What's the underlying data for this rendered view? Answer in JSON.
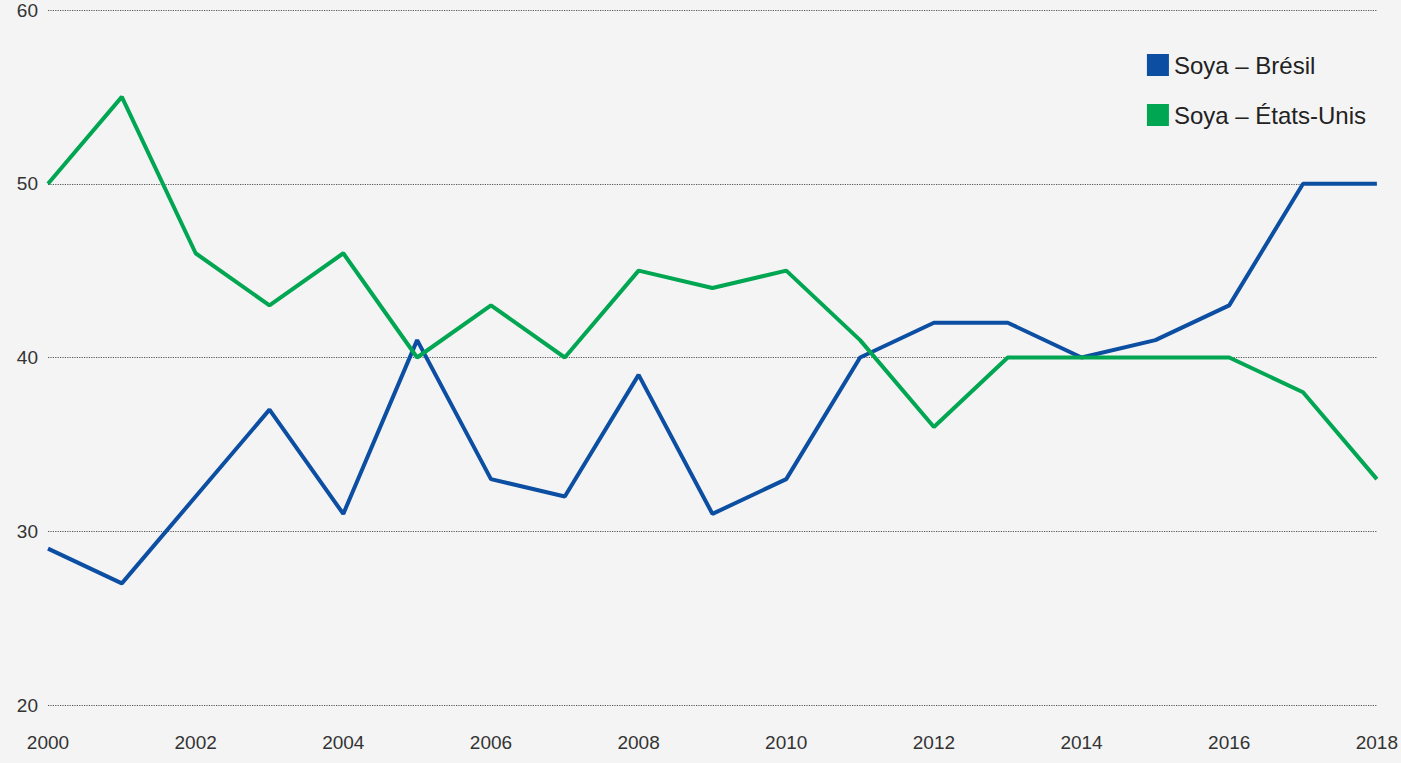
{
  "chart_data": {
    "type": "line",
    "categories": [
      "2000",
      null,
      "2002",
      null,
      "2004",
      null,
      "2006",
      null,
      "2008",
      null,
      "2010",
      null,
      "2012",
      null,
      "2014",
      null,
      "2016",
      null,
      "2018"
    ],
    "series": [
      {
        "name": "Soya – Brésil",
        "color": "#0b4ea2",
        "values": [
          29,
          27,
          32,
          37,
          31,
          41,
          33,
          32,
          39,
          31,
          33,
          40,
          42,
          42,
          40,
          41,
          43,
          50,
          50
        ]
      },
      {
        "name": "Soya – États-Unis",
        "color": "#00a651",
        "values": [
          50,
          55,
          46,
          43,
          46,
          40,
          43,
          40,
          45,
          44,
          45,
          41,
          36,
          40,
          40,
          40,
          40,
          38,
          33
        ]
      }
    ],
    "ylim": [
      20,
      60
    ],
    "yticks": [
      20,
      30,
      40,
      50,
      60
    ],
    "grid": true,
    "legend": "top-right",
    "marker": "none",
    "line_style": "solid"
  }
}
